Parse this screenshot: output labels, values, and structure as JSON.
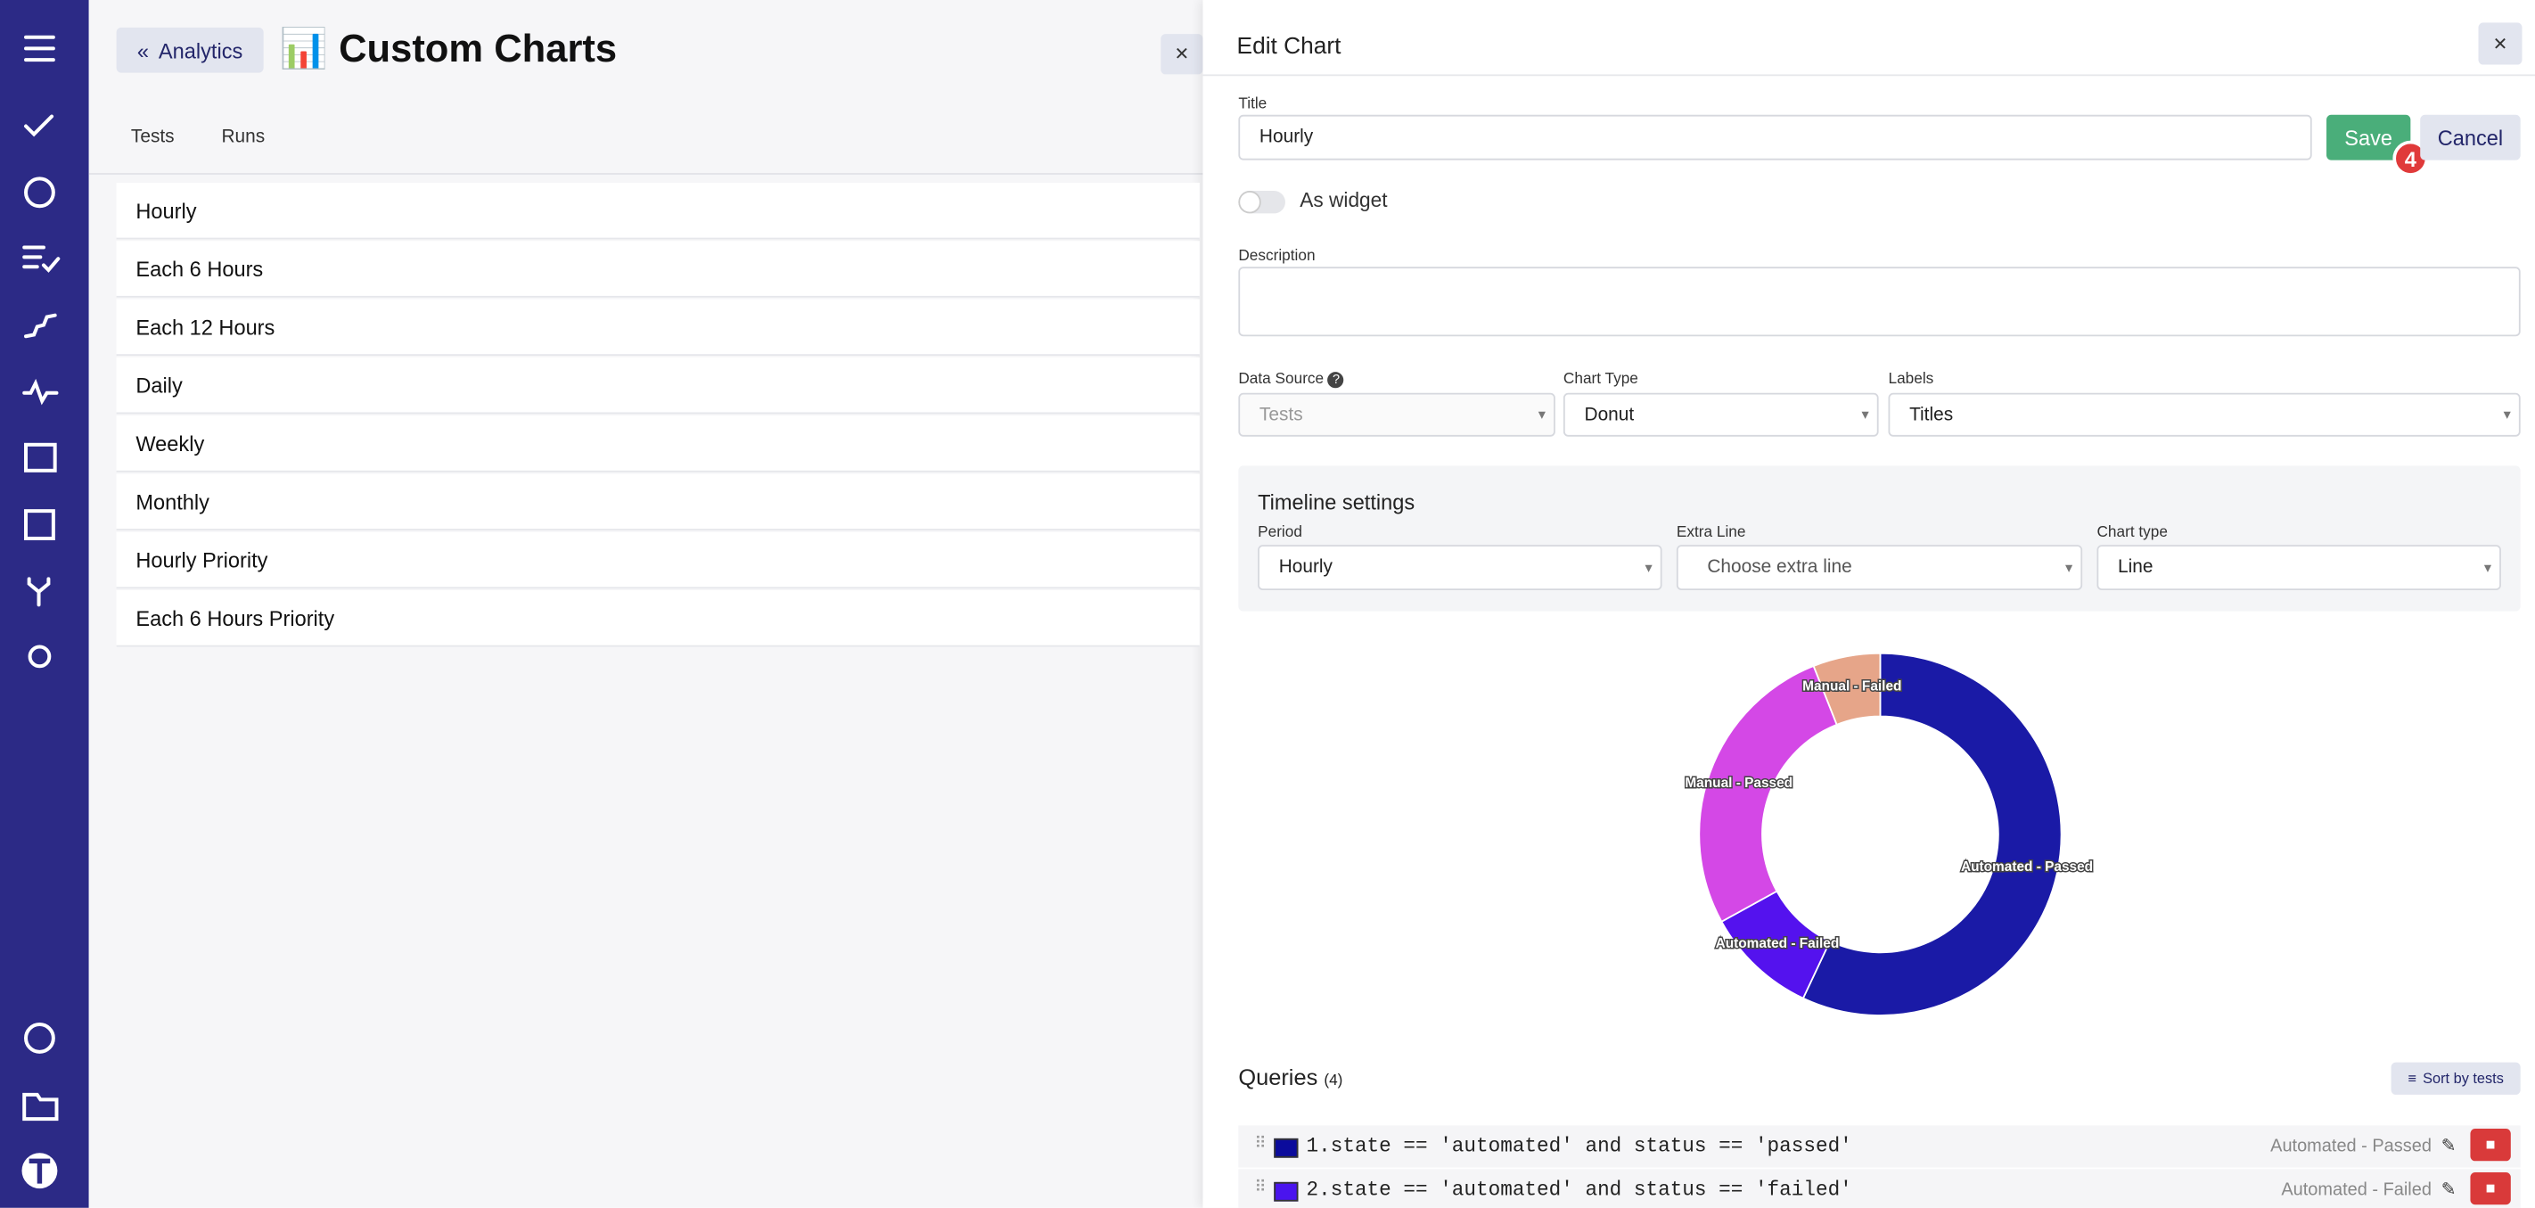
{
  "header": {
    "back_button": "Analytics",
    "title": "📊 Custom Charts"
  },
  "tabs": [
    "Tests",
    "Runs"
  ],
  "chart_list": [
    "Hourly",
    "Each 6 Hours",
    "Each 12 Hours",
    "Daily",
    "Weekly",
    "Monthly",
    "Hourly Priority",
    "Each 6 Hours Priority"
  ],
  "editor": {
    "heading": "Edit Chart",
    "title_label": "Title",
    "title_value": "Hourly",
    "save": "Save",
    "badge": "4",
    "cancel": "Cancel",
    "widget_label": "As widget",
    "description_label": "Description",
    "data_source_label": "Data Source",
    "data_source_value": "Tests",
    "chart_type_label": "Chart Type",
    "chart_type_value": "Donut",
    "labels_label": "Labels",
    "labels_value": "Titles",
    "timeline": {
      "heading": "Timeline settings",
      "period_label": "Period",
      "period_value": "Hourly",
      "extra_line_label": "Extra Line",
      "extra_line_value": "Choose extra line",
      "chart_type_label": "Chart type",
      "chart_type_value": "Line"
    },
    "queries_heading": "Queries",
    "queries_count": "(4)",
    "sort_button": "Sort by tests",
    "queries": [
      {
        "text": "1.state == 'automated' and status == 'passed'",
        "label": "Automated - Passed",
        "color": "#0b0b9c"
      },
      {
        "text": "2.state == 'automated' and status == 'failed'",
        "label": "Automated - Failed",
        "color": "#4a14ee"
      }
    ]
  },
  "chart_data": {
    "type": "donut",
    "categories": [
      "Automated - Passed",
      "Automated - Failed",
      "Manual - Passed",
      "Manual - Failed"
    ],
    "values": [
      57,
      10,
      27,
      6
    ],
    "colors": [
      "#1a1aa6",
      "#5412ee",
      "#d448e6",
      "#e6a589"
    ]
  }
}
